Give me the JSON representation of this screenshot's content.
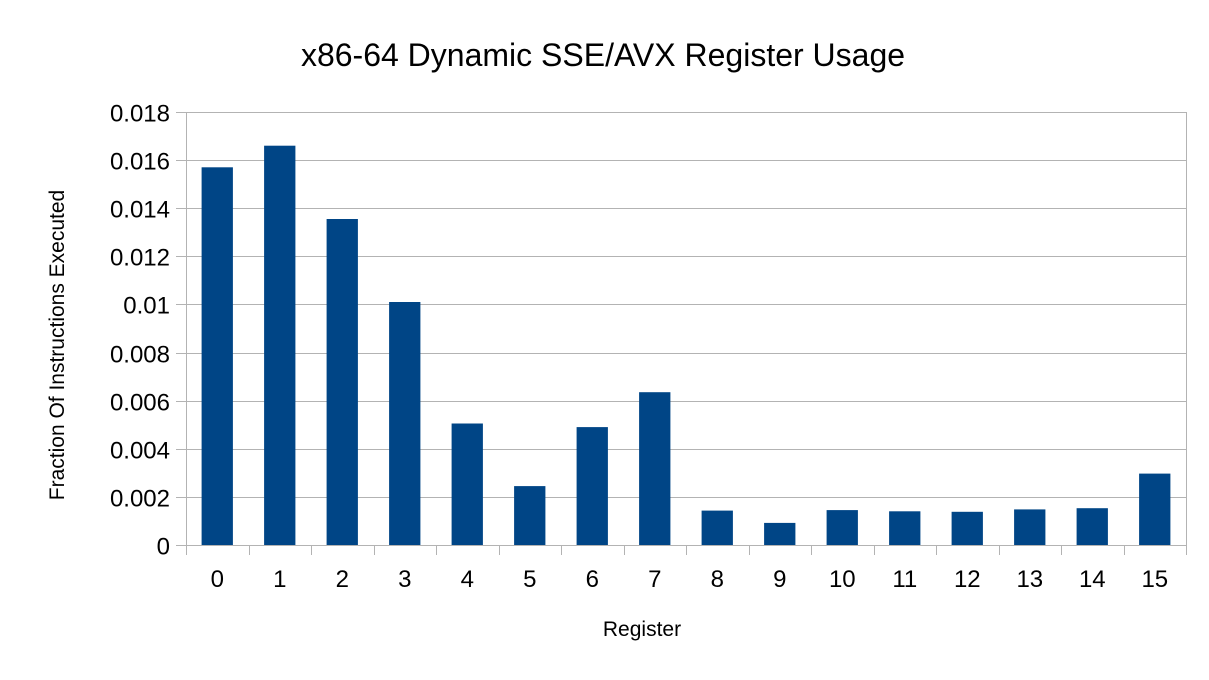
{
  "chart_data": {
    "type": "bar",
    "title": "x86-64 Dynamic SSE/AVX Register Usage",
    "xlabel": "Register",
    "ylabel": "Fraction Of Instructions Executed",
    "categories": [
      "0",
      "1",
      "2",
      "3",
      "4",
      "5",
      "6",
      "7",
      "8",
      "9",
      "10",
      "11",
      "12",
      "13",
      "14",
      "15"
    ],
    "values": [
      0.0157,
      0.0166,
      0.01355,
      0.0101,
      0.00505,
      0.00245,
      0.0049,
      0.00635,
      0.00143,
      0.00092,
      0.00145,
      0.0014,
      0.00138,
      0.00148,
      0.00153,
      0.00297
    ],
    "ylim": [
      0,
      0.018
    ],
    "yticks": [
      "0",
      "0.002",
      "0.004",
      "0.006",
      "0.008",
      "0.01",
      "0.012",
      "0.014",
      "0.016",
      "0.018"
    ],
    "ytick_values": [
      0,
      0.002,
      0.004,
      0.006,
      0.008,
      0.01,
      0.012,
      0.014,
      0.016,
      0.018
    ],
    "grid": true,
    "legend": "none",
    "bar_color": "#004586"
  }
}
